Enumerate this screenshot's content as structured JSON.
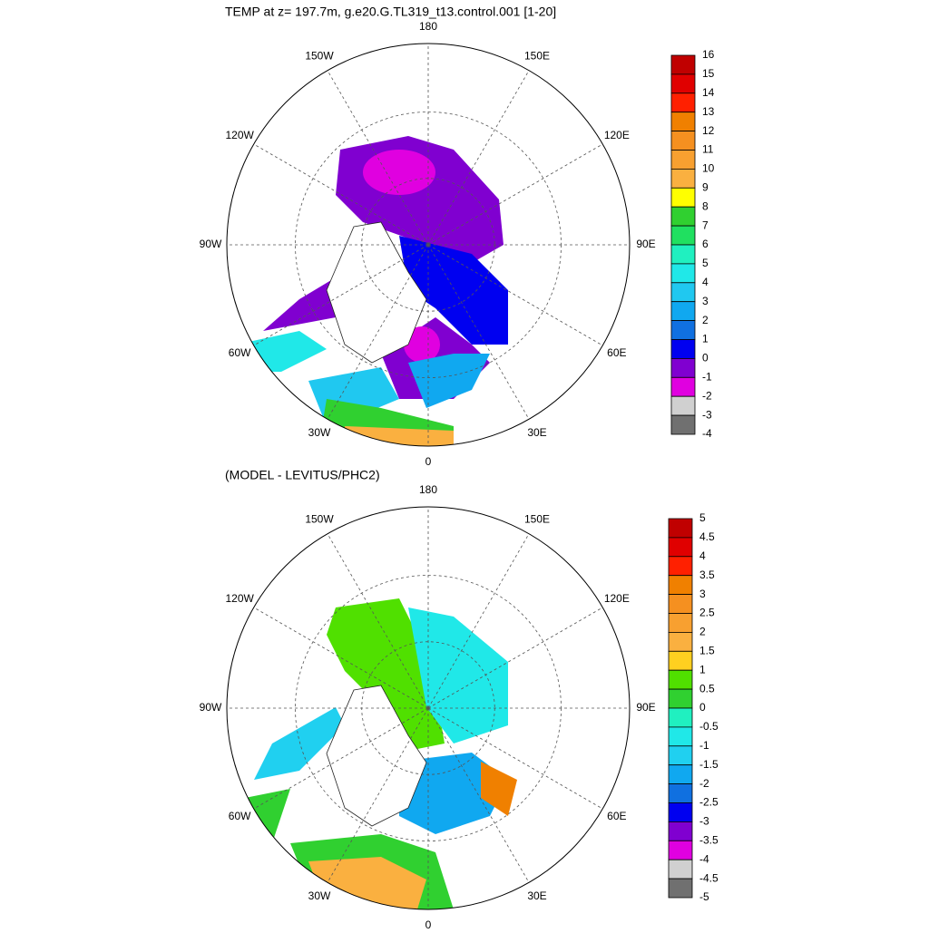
{
  "maps": [
    {
      "title": "TEMP at z= 197.7m, g.e20.G.TL319_t13.control.001 [1-20]",
      "lon_labels": [
        "0",
        "30W",
        "60W",
        "90W",
        "120W",
        "150W",
        "180",
        "150E",
        "120E",
        "90E",
        "60E",
        "30E"
      ],
      "colorbar": {
        "levels": [
          16,
          15,
          14,
          13,
          12,
          11,
          10,
          9,
          8,
          7,
          6,
          5,
          4,
          3,
          2,
          1,
          0,
          -1,
          -2,
          -3,
          -4
        ],
        "colors": [
          "#c00000",
          "#e00000",
          "#ff2000",
          "#f08000",
          "#f59020",
          "#f8a030",
          "#fab040",
          "#ffff00",
          "#30d030",
          "#20e060",
          "#20f0c0",
          "#20e8e8",
          "#20c8f0",
          "#10a8f0",
          "#1070e0",
          "#0000f0",
          "#8000d0",
          "#e000e0",
          "#d0d0d0",
          "#707070"
        ]
      }
    },
    {
      "title": "(MODEL - LEVITUS/PHC2)",
      "lon_labels": [
        "0",
        "30W",
        "60W",
        "90W",
        "120W",
        "150W",
        "180",
        "150E",
        "120E",
        "90E",
        "60E",
        "30E"
      ],
      "colorbar": {
        "levels": [
          5,
          4.5,
          4,
          3.5,
          3,
          2.5,
          2,
          1.5,
          1,
          0.5,
          0,
          -0.5,
          -1,
          -1.5,
          -2,
          -2.5,
          -3,
          -3.5,
          -4,
          -4.5,
          -5
        ],
        "colors": [
          "#c00000",
          "#e00000",
          "#ff2000",
          "#f08000",
          "#f59020",
          "#f8a030",
          "#fab040",
          "#ffd020",
          "#50e000",
          "#30d030",
          "#20f0c0",
          "#20e8e8",
          "#20d0f0",
          "#10a8f0",
          "#1070e0",
          "#0000f0",
          "#8000d0",
          "#e000e0",
          "#d0d0d0",
          "#707070"
        ]
      }
    }
  ]
}
